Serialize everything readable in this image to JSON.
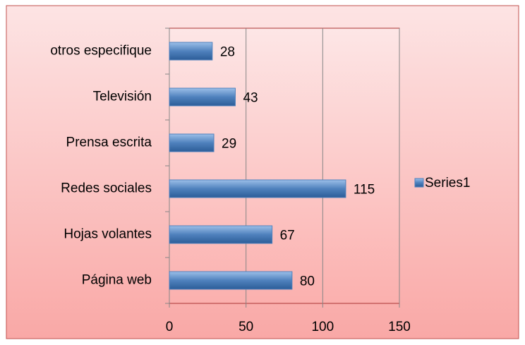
{
  "chart_data": {
    "type": "bar",
    "orientation": "horizontal",
    "categories": [
      "Página web",
      "Hojas volantes",
      "Redes sociales",
      "Prensa escrita",
      "Televisión",
      "otros especifique"
    ],
    "series": [
      {
        "name": "Series1",
        "color": "#4f81bd",
        "values": [
          80,
          67,
          115,
          29,
          43,
          28
        ]
      }
    ],
    "xlim": [
      0,
      150
    ],
    "xticks": [
      0,
      50,
      100,
      150
    ],
    "grid": true,
    "legend": "right"
  }
}
